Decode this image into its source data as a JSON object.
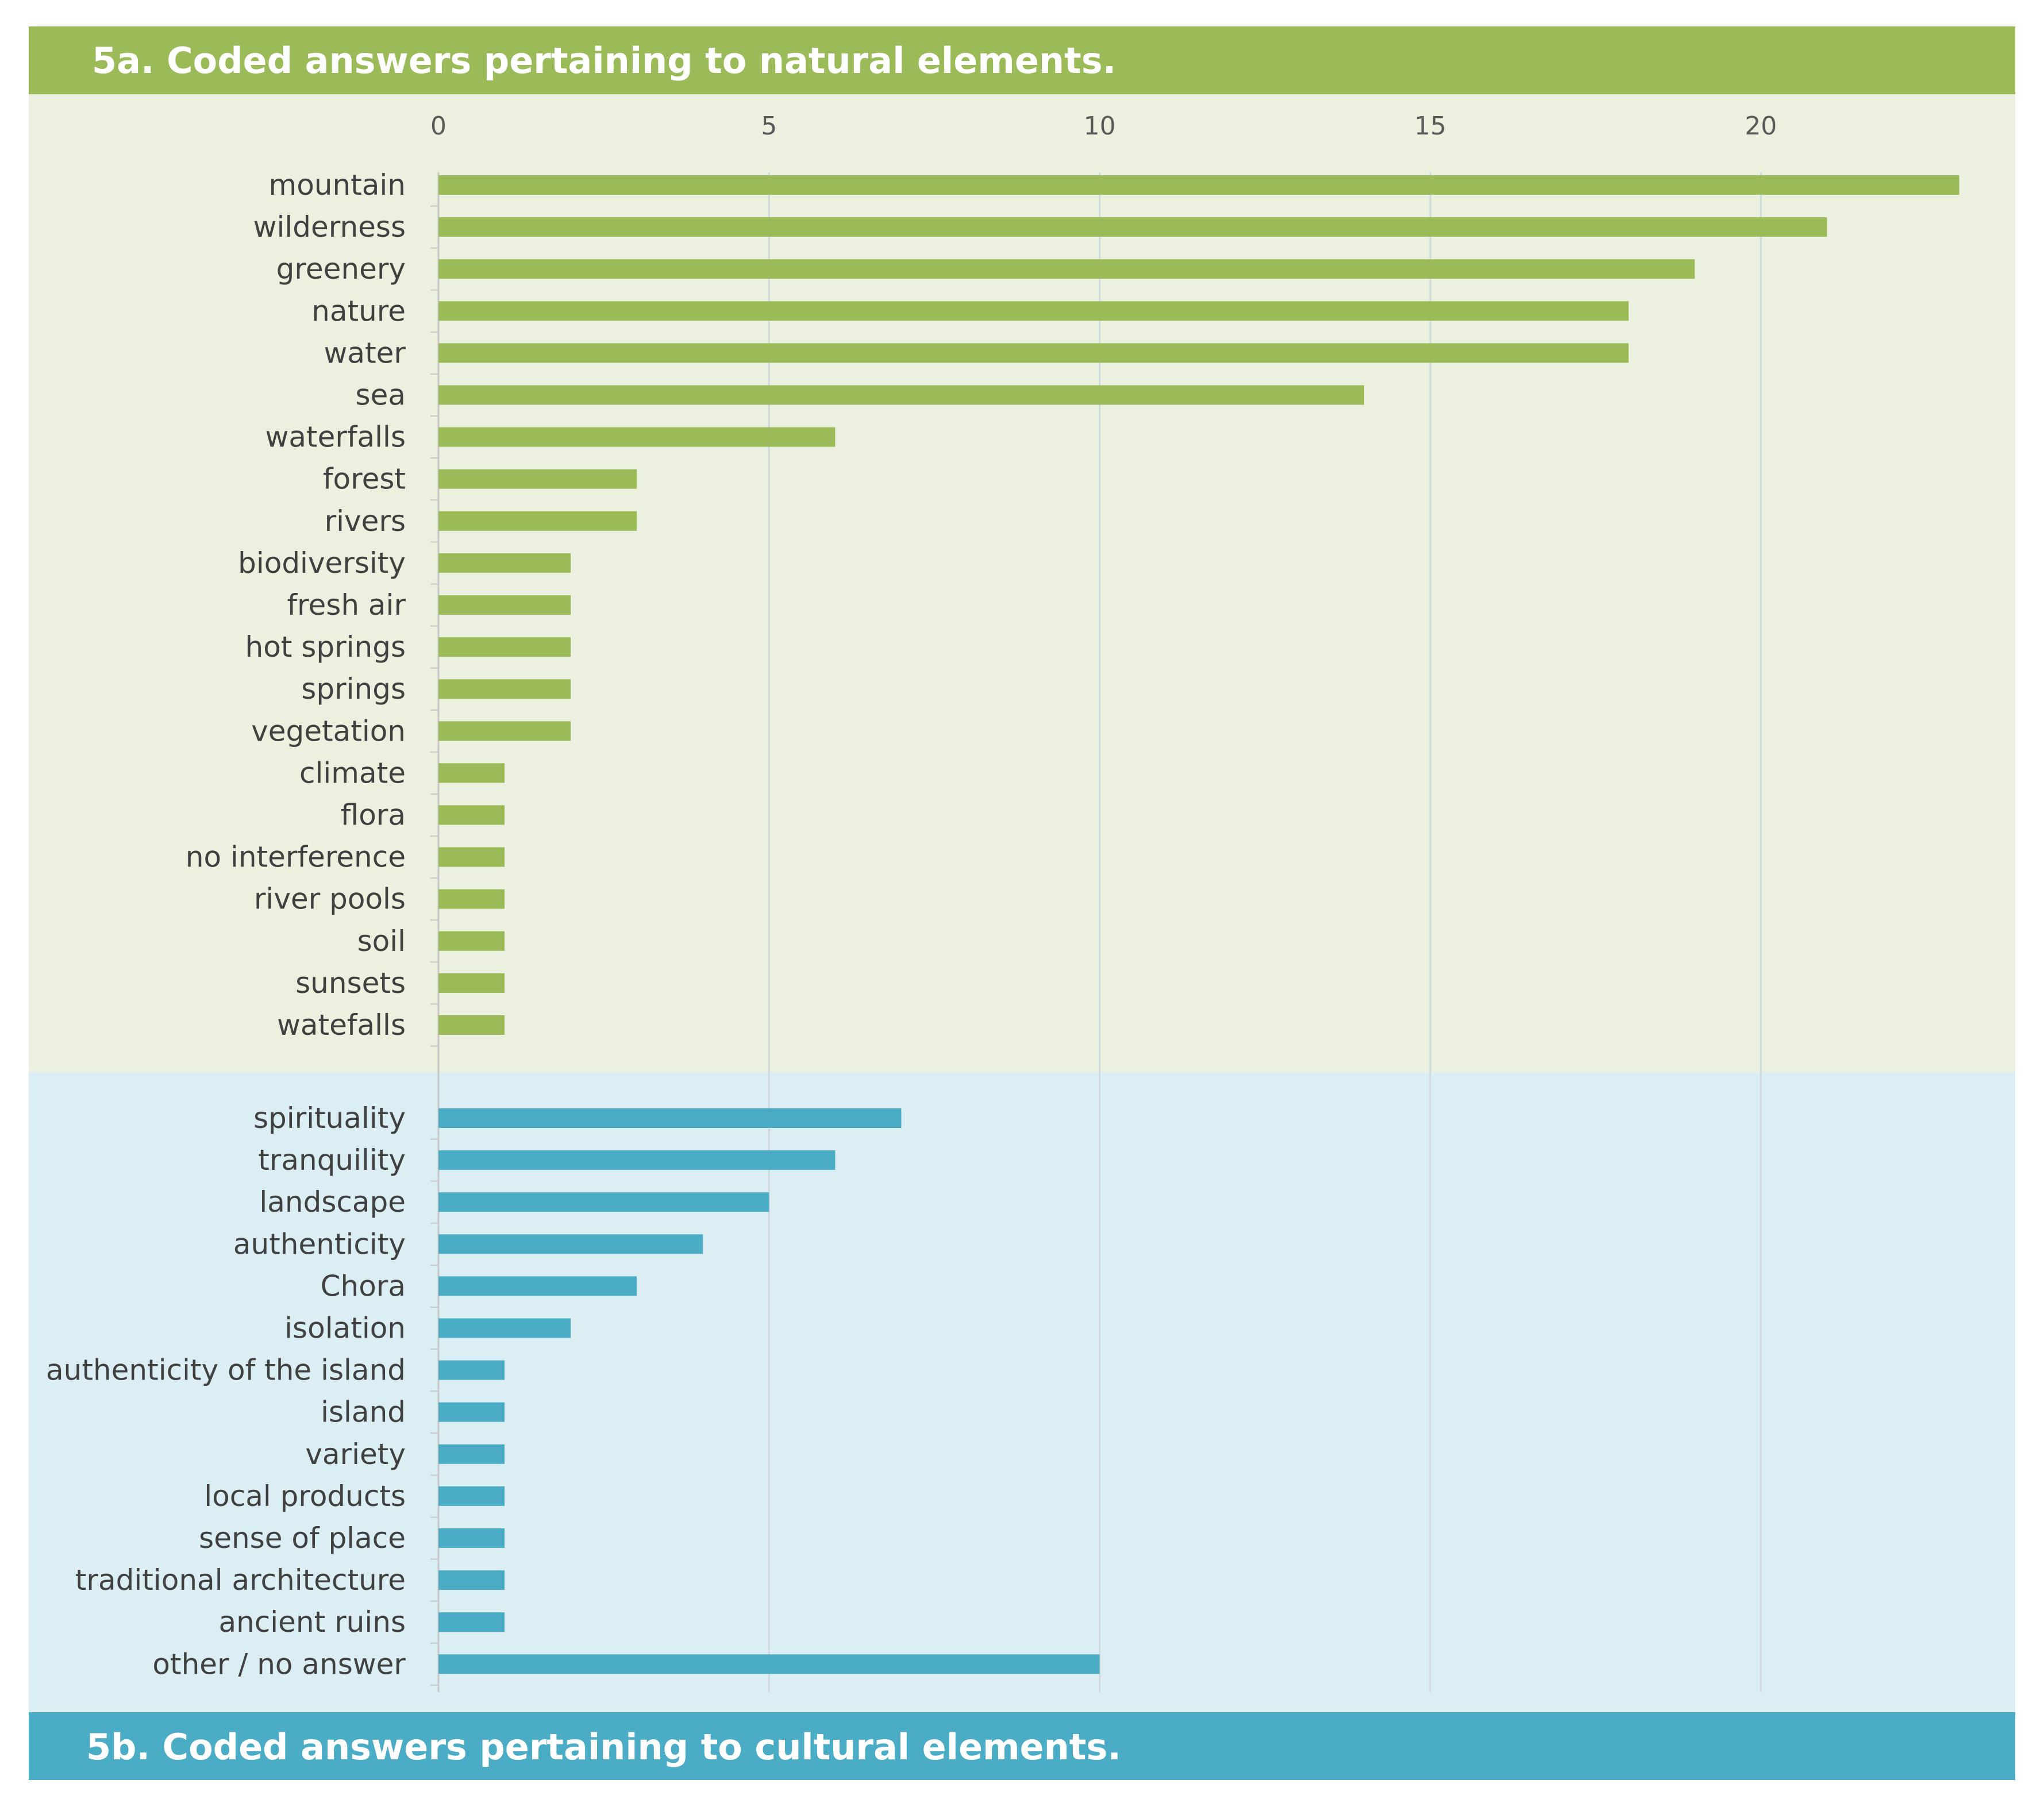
{
  "chart_data": [
    {
      "type": "bar",
      "orientation": "horizontal",
      "title": "5a. Coded answers pertaining to natural elements.",
      "color": "#9bbb59",
      "background": "#ebf1de",
      "categories": [
        "mountain",
        "wilderness",
        "greenery",
        "nature",
        "water",
        "sea",
        "waterfalls",
        "forest",
        "rivers",
        "biodiversity",
        "fresh air",
        "hot springs",
        "springs",
        "vegetation",
        "climate",
        "flora",
        "no interference",
        "river pools",
        "soil",
        "sunsets",
        "watefalls"
      ],
      "values": [
        23,
        21,
        19,
        18,
        18,
        14,
        6,
        3,
        3,
        2,
        2,
        2,
        2,
        2,
        1,
        1,
        1,
        1,
        1,
        1,
        1
      ]
    },
    {
      "type": "bar",
      "orientation": "horizontal",
      "title": "5b. Coded answers pertaining to cultural elements.",
      "color": "#4bacc6",
      "background": "#daeef3",
      "categories": [
        "spirituality",
        "tranquility",
        "landscape",
        "authenticity ",
        "Chora",
        "isolation",
        "authenticity of the island",
        "island",
        "variety",
        "local products",
        "sense of place",
        "traditional architecture",
        "ancient ruins",
        "other / no answer"
      ],
      "values": [
        7,
        6,
        5,
        4,
        3,
        2,
        1,
        1,
        1,
        1,
        1,
        1,
        1,
        10
      ]
    }
  ],
  "x_axis": {
    "min": 0,
    "max": 23.3,
    "ticks": [
      0,
      5,
      10,
      15,
      20
    ],
    "tick_labels": [
      "0",
      "5",
      "10",
      "15",
      "20"
    ],
    "grid": true,
    "position": "top"
  },
  "colors": {
    "grid": "#cfd8dc",
    "axis": "#c8c8c8",
    "label": "#404040",
    "tick": "#595959"
  }
}
